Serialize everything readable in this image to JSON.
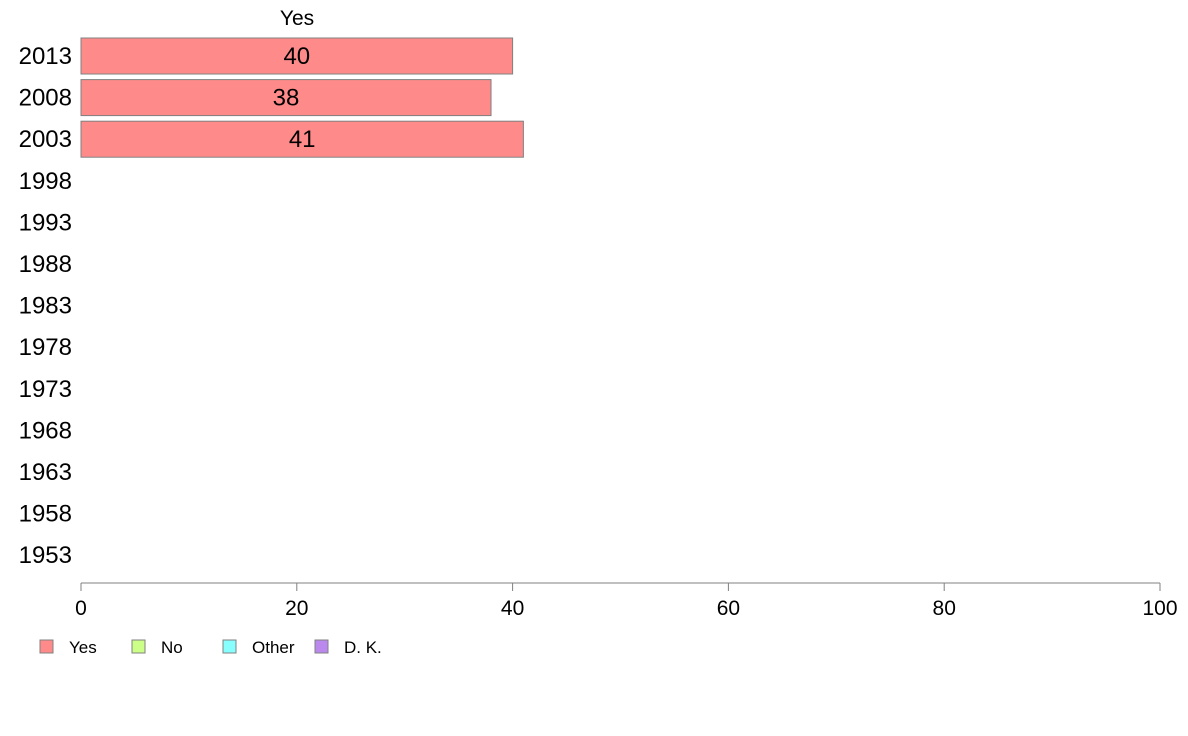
{
  "chart_data": {
    "type": "bar",
    "orientation": "horizontal",
    "stacked": true,
    "categories": [
      "2013",
      "2008",
      "2003",
      "1998",
      "1993",
      "1988",
      "1983",
      "1978",
      "1973",
      "1968",
      "1963",
      "1958",
      "1953"
    ],
    "series": [
      {
        "name": "Yes",
        "color": "#ff8a8a",
        "values": [
          40,
          38,
          41,
          null,
          null,
          null,
          null,
          null,
          null,
          null,
          null,
          null,
          null
        ]
      },
      {
        "name": "No",
        "color": "#ccff88",
        "values": [
          null,
          null,
          null,
          null,
          null,
          null,
          null,
          null,
          null,
          null,
          null,
          null,
          null
        ]
      },
      {
        "name": "Other",
        "color": "#88ffff",
        "values": [
          null,
          null,
          null,
          null,
          null,
          null,
          null,
          null,
          null,
          null,
          null,
          null,
          null
        ]
      },
      {
        "name": "D. K.",
        "color": "#bb88ee",
        "values": [
          null,
          null,
          null,
          null,
          null,
          null,
          null,
          null,
          null,
          null,
          null,
          null,
          null
        ]
      }
    ],
    "column_header": "Yes",
    "xlim": [
      0,
      100
    ],
    "xticks": [
      0,
      20,
      40,
      60,
      80,
      100
    ],
    "legend_position": "bottom-left",
    "grid": false
  }
}
